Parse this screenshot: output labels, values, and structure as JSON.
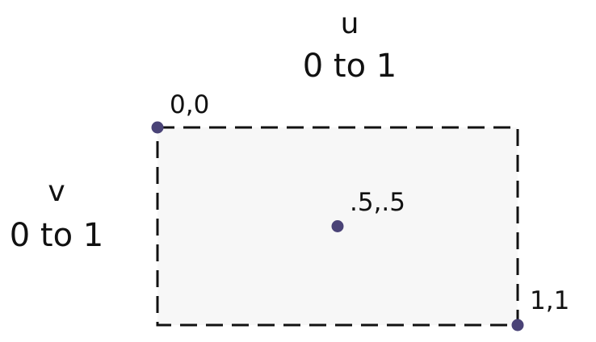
{
  "u_axis": {
    "name": "u",
    "range": "0 to 1"
  },
  "v_axis": {
    "name": "v",
    "range": "0 to 1"
  },
  "points": [
    {
      "u": 0,
      "v": 0,
      "label": "0,0"
    },
    {
      "u": 0.5,
      "v": 0.5,
      "label": ".5,.5"
    },
    {
      "u": 1,
      "v": 1,
      "label": "1,1"
    }
  ],
  "colors": {
    "fill": "#f7f7f7",
    "border": "#111111",
    "point": "#4a4377"
  }
}
